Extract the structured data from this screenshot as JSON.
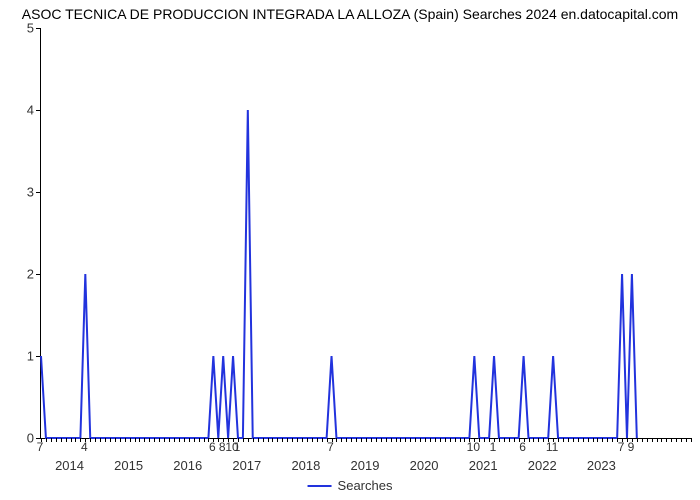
{
  "chart": {
    "type": "line",
    "title": "ASOC TECNICA DE PRODUCCION INTEGRADA LA ALLOZA (Spain) Searches 2024 en.datocapital.com",
    "title_fontsize": 14,
    "line_color": "#2233dd",
    "line_width": 2,
    "background_color": "#ffffff",
    "axis_color": "#000000",
    "tick_label_color": "#333333",
    "tick_label_fontsize": 13,
    "point_label_fontsize": 12,
    "ylim": [
      0,
      5
    ],
    "yticks": [
      0,
      1,
      2,
      3,
      4,
      5
    ],
    "xlim": [
      0,
      132
    ],
    "year_ticks": [
      {
        "label": "2014",
        "x": 6
      },
      {
        "label": "2015",
        "x": 18
      },
      {
        "label": "2016",
        "x": 30
      },
      {
        "label": "2017",
        "x": 42
      },
      {
        "label": "2018",
        "x": 54
      },
      {
        "label": "2019",
        "x": 66
      },
      {
        "label": "2020",
        "x": 78
      },
      {
        "label": "2021",
        "x": 90
      },
      {
        "label": "2022",
        "x": 102
      },
      {
        "label": "2023",
        "x": 114
      }
    ],
    "minor_tick_step": 1,
    "minor_tick_height": 4,
    "series": [
      {
        "x": 0,
        "y": 1,
        "label": "7"
      },
      {
        "x": 1,
        "y": 0
      },
      {
        "x": 8,
        "y": 0
      },
      {
        "x": 9,
        "y": 2,
        "label": "4"
      },
      {
        "x": 10,
        "y": 0
      },
      {
        "x": 34,
        "y": 0
      },
      {
        "x": 35,
        "y": 1,
        "label": "6"
      },
      {
        "x": 36,
        "y": 0
      },
      {
        "x": 37,
        "y": 1,
        "label": "8"
      },
      {
        "x": 38,
        "y": 0
      },
      {
        "x": 39,
        "y": 1,
        "label": "10"
      },
      {
        "x": 40,
        "y": 0,
        "label": "1"
      },
      {
        "x": 41,
        "y": 0
      },
      {
        "x": 42,
        "y": 4
      },
      {
        "x": 43,
        "y": 0
      },
      {
        "x": 58,
        "y": 0
      },
      {
        "x": 59,
        "y": 1,
        "label": "7"
      },
      {
        "x": 60,
        "y": 0
      },
      {
        "x": 87,
        "y": 0
      },
      {
        "x": 88,
        "y": 1,
        "label": "10"
      },
      {
        "x": 89,
        "y": 0
      },
      {
        "x": 91,
        "y": 0
      },
      {
        "x": 92,
        "y": 1,
        "label": "1"
      },
      {
        "x": 93,
        "y": 0
      },
      {
        "x": 97,
        "y": 0
      },
      {
        "x": 98,
        "y": 1,
        "label": "6"
      },
      {
        "x": 99,
        "y": 0
      },
      {
        "x": 103,
        "y": 0
      },
      {
        "x": 104,
        "y": 1,
        "label": "11"
      },
      {
        "x": 105,
        "y": 0
      },
      {
        "x": 117,
        "y": 0
      },
      {
        "x": 118,
        "y": 2,
        "label": "7"
      },
      {
        "x": 119,
        "y": 0
      },
      {
        "x": 120,
        "y": 2,
        "label": "9"
      },
      {
        "x": 121,
        "y": 0
      }
    ],
    "legend_label": "Searches"
  }
}
